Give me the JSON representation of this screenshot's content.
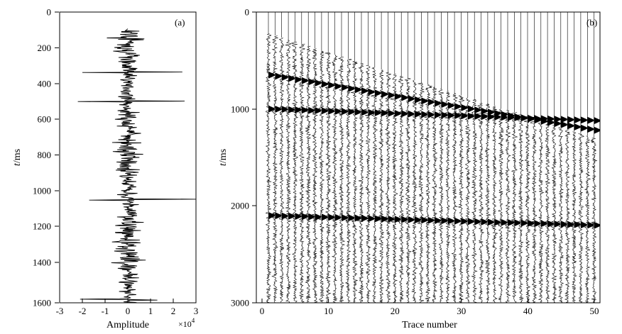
{
  "chart_data": [
    {
      "type": "line",
      "panel_label": "(a)",
      "xlabel": "Amplitude",
      "x_multiplier_label": "×10",
      "x_multiplier_exp": "4",
      "ylabel_italic": "t",
      "ylabel_unit": "/ms",
      "xlim": [
        -3,
        3
      ],
      "ylim": [
        0,
        1600
      ],
      "y_inverted": true,
      "x_ticks": [
        "-3",
        "-2",
        "-1",
        "0",
        "1",
        "2",
        "3"
      ],
      "y_ticks": [
        "0",
        "200",
        "400",
        "600",
        "800",
        "1000",
        "1200",
        "1400",
        "1600"
      ],
      "trace_start_ms": 100,
      "trace_end_ms": 1600,
      "spikes": [
        {
          "t": 330,
          "amp": 2.4
        },
        {
          "t": 332,
          "amp": -2.0
        },
        {
          "t": 490,
          "amp": 2.5
        },
        {
          "t": 492,
          "amp": -2.2
        },
        {
          "t": 1030,
          "amp": 3.0
        },
        {
          "t": 1034,
          "amp": -1.7
        },
        {
          "t": 1580,
          "amp": -2.1
        },
        {
          "t": 1585,
          "amp": 1.3
        }
      ],
      "grid": false
    },
    {
      "type": "seismic-gather",
      "panel_label": "(b)",
      "xlabel": "Trace number",
      "ylabel_italic": "t",
      "ylabel_unit": "/ms",
      "xlim": [
        0,
        50
      ],
      "ylim": [
        0,
        3000
      ],
      "y_inverted": true,
      "x_ticks": [
        "0",
        "10",
        "20",
        "30",
        "40",
        "50"
      ],
      "y_ticks": [
        "0",
        "1000",
        "2000",
        "3000"
      ],
      "trace_count": 50,
      "first_break_ms": {
        "trace_1": 220,
        "trace_50": 1300
      },
      "reflectors": [
        {
          "t_at_trace_1": 650,
          "t_at_trace_50": 1220
        },
        {
          "t_at_trace_1": 1000,
          "t_at_trace_50": 1120
        },
        {
          "t_at_trace_1": 2100,
          "t_at_trace_50": 2200
        }
      ],
      "grid": false
    }
  ]
}
